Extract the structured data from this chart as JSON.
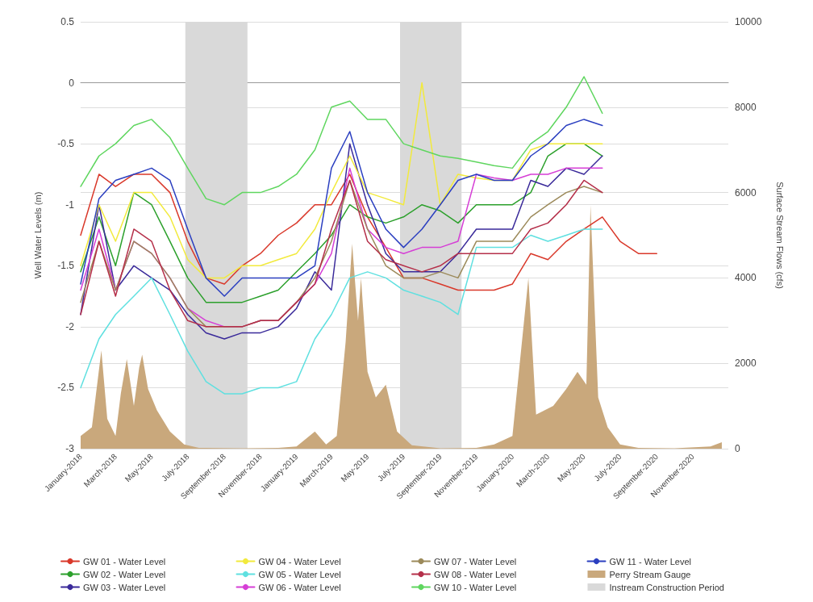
{
  "chart_data": {
    "type": "line",
    "ylabel": "Well Water Levels (m)",
    "y2label": "Surface Stream Flows (cfs)",
    "x": [
      "2018-01-01",
      "2018-02-01",
      "2018-03-01",
      "2018-04-01",
      "2018-05-01",
      "2018-06-01",
      "2018-07-01",
      "2018-08-01",
      "2018-09-01",
      "2018-10-01",
      "2018-11-01",
      "2018-12-01",
      "2019-01-01",
      "2019-02-01",
      "2019-03-01",
      "2019-04-01",
      "2019-05-01",
      "2019-06-01",
      "2019-07-01",
      "2019-08-01",
      "2019-09-01",
      "2019-10-01",
      "2019-11-01",
      "2019-12-01",
      "2020-01-01",
      "2020-02-01",
      "2020-03-01",
      "2020-04-01",
      "2020-05-01",
      "2020-06-01",
      "2020-07-01",
      "2020-08-01",
      "2020-09-01"
    ],
    "series": [
      {
        "name": "GW 01 - Water Level",
        "color": "#d9382a",
        "values": [
          -1.25,
          -0.75,
          -0.85,
          -0.75,
          -0.75,
          -0.9,
          -1.3,
          -1.6,
          -1.65,
          -1.5,
          -1.4,
          -1.25,
          -1.15,
          -1.0,
          -1.0,
          -0.75,
          -1.1,
          -1.35,
          -1.6,
          -1.6,
          -1.65,
          -1.7,
          -1.7,
          -1.7,
          -1.65,
          -1.4,
          -1.45,
          -1.3,
          -1.2,
          -1.1,
          -1.3,
          -1.4,
          -1.4
        ]
      },
      {
        "name": "GW 02 - Water Level",
        "color": "#2ca02c",
        "values": [
          -1.55,
          -1.1,
          -1.5,
          -0.9,
          -1.0,
          -1.3,
          -1.6,
          -1.8,
          -1.8,
          -1.8,
          -1.75,
          -1.7,
          -1.55,
          -1.4,
          -1.25,
          -1.0,
          -1.1,
          -1.15,
          -1.1,
          -1.0,
          -1.05,
          -1.15,
          -1.0,
          -1.0,
          -1.0,
          -0.9,
          -0.6,
          -0.5,
          -0.5,
          -0.6,
          null,
          null,
          null
        ]
      },
      {
        "name": "GW 03 - Water Level",
        "color": "#3a2a9a",
        "values": [
          -1.9,
          -1.0,
          -1.7,
          -1.5,
          -1.6,
          -1.7,
          -1.9,
          -2.05,
          -2.1,
          -2.05,
          -2.05,
          -2.0,
          -1.85,
          -1.55,
          -1.7,
          -0.5,
          -1.0,
          -1.4,
          -1.55,
          -1.55,
          -1.55,
          -1.4,
          -1.2,
          -1.2,
          -1.2,
          -0.8,
          -0.85,
          -0.7,
          -0.75,
          -0.6,
          null,
          null,
          null
        ]
      },
      {
        "name": "GW 04 - Water Level",
        "color": "#f2ea3c",
        "values": [
          -1.5,
          -1.0,
          -1.3,
          -0.9,
          -0.9,
          -1.1,
          -1.45,
          -1.6,
          -1.6,
          -1.5,
          -1.5,
          -1.45,
          -1.4,
          -1.2,
          -0.9,
          -0.6,
          -0.9,
          -0.95,
          -1.0,
          0,
          -1.0,
          -0.75,
          -0.78,
          -0.8,
          -0.8,
          -0.55,
          -0.5,
          -0.5,
          -0.5,
          -0.5,
          null,
          null,
          null
        ]
      },
      {
        "name": "GW 05 - Water Level",
        "color": "#5fe0e0",
        "values": [
          -2.5,
          -2.1,
          -1.9,
          -1.75,
          -1.6,
          -1.9,
          -2.2,
          -2.45,
          -2.55,
          -2.55,
          -2.5,
          -2.5,
          -2.45,
          -2.1,
          -1.9,
          -1.6,
          -1.55,
          -1.6,
          -1.7,
          -1.75,
          -1.8,
          -1.9,
          -1.35,
          -1.35,
          -1.35,
          -1.25,
          -1.3,
          -1.25,
          -1.2,
          -1.2,
          null,
          null,
          null
        ]
      },
      {
        "name": "GW 06 - Water Level",
        "color": "#d63fd6",
        "values": [
          -1.7,
          -1.2,
          -1.7,
          -1.3,
          -1.4,
          -1.6,
          -1.85,
          -1.95,
          -2.0,
          -2.0,
          -1.95,
          -1.95,
          -1.8,
          -1.65,
          -1.4,
          -0.7,
          -1.2,
          -1.35,
          -1.4,
          -1.35,
          -1.35,
          -1.3,
          -0.75,
          -0.78,
          -0.8,
          -0.75,
          -0.75,
          -0.7,
          -0.7,
          -0.7,
          null,
          null,
          null
        ]
      },
      {
        "name": "GW 07 - Water Level",
        "color": "#9c8a5a",
        "values": [
          -1.8,
          -1.3,
          -1.7,
          -1.3,
          -1.4,
          -1.6,
          -1.85,
          -2.0,
          -2.0,
          -2.0,
          -1.95,
          -1.95,
          -1.8,
          -1.6,
          -1.3,
          -0.8,
          -1.2,
          -1.5,
          -1.6,
          -1.6,
          -1.55,
          -1.6,
          -1.3,
          -1.3,
          -1.3,
          -1.1,
          -1.0,
          -0.9,
          -0.85,
          -0.9,
          null,
          null,
          null
        ]
      },
      {
        "name": "GW 08 - Water Level",
        "color": "#b5304a",
        "values": [
          -1.9,
          -1.3,
          -1.75,
          -1.2,
          -1.3,
          -1.7,
          -1.95,
          -2.0,
          -2.0,
          -2.0,
          -1.95,
          -1.95,
          -1.8,
          -1.65,
          -1.2,
          -0.8,
          -1.3,
          -1.45,
          -1.5,
          -1.55,
          -1.5,
          -1.4,
          -1.4,
          -1.4,
          -1.4,
          -1.2,
          -1.15,
          -1.0,
          -0.8,
          -0.9,
          null,
          null,
          null
        ]
      },
      {
        "name": "GW 10 - Water Level",
        "color": "#5fd65f",
        "values": [
          -0.85,
          -0.6,
          -0.5,
          -0.35,
          -0.3,
          -0.45,
          -0.7,
          -0.95,
          -1.0,
          -0.9,
          -0.9,
          -0.85,
          -0.75,
          -0.55,
          -0.2,
          -0.15,
          -0.3,
          -0.3,
          -0.5,
          -0.55,
          -0.6,
          -0.62,
          -0.65,
          -0.68,
          -0.7,
          -0.5,
          -0.4,
          -0.2,
          0.05,
          -0.25,
          null,
          null,
          null
        ]
      },
      {
        "name": "GW 11 - Water Level",
        "color": "#2b3fc0",
        "values": [
          -1.65,
          -0.95,
          -0.8,
          -0.75,
          -0.7,
          -0.8,
          -1.2,
          -1.6,
          -1.75,
          -1.6,
          -1.6,
          -1.6,
          -1.6,
          -1.5,
          -0.7,
          -0.4,
          -0.9,
          -1.2,
          -1.35,
          -1.2,
          -1.0,
          -0.8,
          -0.75,
          -0.8,
          -0.8,
          -0.6,
          -0.5,
          -0.35,
          -0.3,
          -0.35,
          null,
          null,
          null
        ]
      },
      {
        "name": "Perry Stream Gauge",
        "type": "area",
        "axis": "y2",
        "color": "#c9a87c",
        "x": [
          "2018-01-01",
          "2018-01-20",
          "2018-02-05",
          "2018-02-15",
          "2018-03-01",
          "2018-03-10",
          "2018-03-20",
          "2018-04-01",
          "2018-04-10",
          "2018-04-15",
          "2018-04-25",
          "2018-05-10",
          "2018-06-01",
          "2018-06-25",
          "2018-07-20",
          "2018-10-01",
          "2018-12-01",
          "2019-01-01",
          "2019-02-01",
          "2019-02-20",
          "2019-03-10",
          "2019-03-25",
          "2019-04-05",
          "2019-04-15",
          "2019-04-20",
          "2019-05-01",
          "2019-05-15",
          "2019-06-01",
          "2019-06-20",
          "2019-07-15",
          "2019-09-01",
          "2019-11-01",
          "2019-12-01",
          "2020-01-01",
          "2020-01-28",
          "2020-02-10",
          "2020-03-10",
          "2020-04-01",
          "2020-04-20",
          "2020-05-05",
          "2020-05-12",
          "2020-05-25",
          "2020-06-10",
          "2020-07-01",
          "2020-08-01",
          "2020-10-01",
          "2020-12-01",
          "2020-12-20"
        ],
        "values": [
          300,
          500,
          2300,
          700,
          300,
          1300,
          2100,
          1000,
          1900,
          2200,
          1400,
          900,
          400,
          100,
          20,
          10,
          20,
          50,
          400,
          100,
          300,
          2500,
          4800,
          3000,
          4000,
          1800,
          1200,
          1500,
          400,
          80,
          10,
          20,
          100,
          300,
          4000,
          800,
          1000,
          1400,
          1800,
          1500,
          5700,
          1200,
          500,
          100,
          20,
          10,
          50,
          150
        ]
      }
    ],
    "bands": [
      {
        "axis": "x",
        "from": "2018-06-27",
        "to": "2018-10-10",
        "label": "Instream Construction Period",
        "color": "#d9d9d9"
      },
      {
        "axis": "x",
        "from": "2019-06-25",
        "to": "2019-10-07",
        "color": "#d9d9d9"
      }
    ],
    "xlim": [
      "2018-01-01",
      "2020-12-31"
    ],
    "xticks": [
      {
        "value": "2018-01-01",
        "label": "January-2018"
      },
      {
        "value": "2018-03-01",
        "label": "March-2018"
      },
      {
        "value": "2018-05-01",
        "label": "May-2018"
      },
      {
        "value": "2018-07-01",
        "label": "July-2018"
      },
      {
        "value": "2018-09-01",
        "label": "September-2018"
      },
      {
        "value": "2018-11-01",
        "label": "November-2018"
      },
      {
        "value": "2019-01-01",
        "label": "January-2019"
      },
      {
        "value": "2019-03-01",
        "label": "March-2019"
      },
      {
        "value": "2019-05-01",
        "label": "May-2019"
      },
      {
        "value": "2019-07-01",
        "label": "July-2019"
      },
      {
        "value": "2019-09-01",
        "label": "September-2019"
      },
      {
        "value": "2019-11-01",
        "label": "November-2019"
      },
      {
        "value": "2020-01-01",
        "label": "January-2020"
      },
      {
        "value": "2020-03-01",
        "label": "March-2020"
      },
      {
        "value": "2020-05-01",
        "label": "May-2020"
      },
      {
        "value": "2020-07-01",
        "label": "July-2020"
      },
      {
        "value": "2020-09-01",
        "label": "September-2020"
      },
      {
        "value": "2020-11-01",
        "label": "November-2020"
      }
    ],
    "ylim": [
      -3,
      0.5
    ],
    "yticks": [
      -3,
      -2.5,
      -2,
      -1.5,
      -1,
      -0.5,
      0,
      0.5
    ],
    "y2lim": [
      0,
      10000
    ],
    "y2ticks": [
      0,
      2000,
      4000,
      6000,
      8000,
      10000
    ],
    "grid": "y",
    "legend": "bottom",
    "marker": "none",
    "line_style": "solid"
  }
}
